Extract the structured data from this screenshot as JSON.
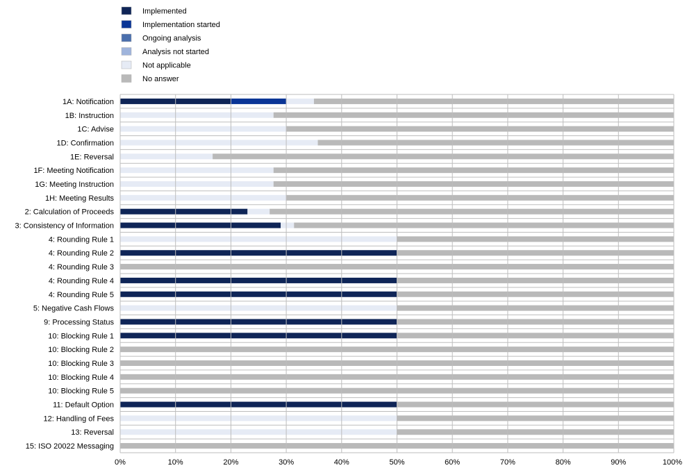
{
  "chart_data": {
    "type": "bar",
    "orientation": "horizontal",
    "stacked": true,
    "legend_position": "top-left",
    "grid": true,
    "xlim": [
      0,
      100
    ],
    "x_ticks": [
      0,
      10,
      20,
      30,
      40,
      50,
      60,
      70,
      80,
      90,
      100
    ],
    "x_tick_labels": [
      "0%",
      "10%",
      "20%",
      "30%",
      "40%",
      "50%",
      "60%",
      "70%",
      "80%",
      "90%",
      "100%"
    ],
    "categories": [
      "1A: Notification",
      "1B: Instruction",
      "1C: Advise",
      "1D: Confirmation",
      "1E:  Reversal",
      "1F: Meeting Notification",
      "1G: Meeting Instruction",
      "1H: Meeting Results",
      "2: Calculation of Proceeds",
      "3: Consistency of Information",
      "4: Rounding Rule 1",
      "4: Rounding Rule 2",
      "4: Rounding Rule 3",
      "4: Rounding Rule 4",
      "4: Rounding Rule 5",
      "5: Negative Cash Flows",
      "9: Processing Status",
      "10: Blocking Rule 1",
      "10: Blocking Rule 2",
      "10: Blocking Rule 3",
      "10: Blocking Rule 4",
      "10: Blocking Rule 5",
      "11: Default Option",
      "12: Handling of Fees",
      "13: Reversal",
      "15: ISO 20022 Messaging"
    ],
    "series": [
      {
        "name": "Implemented",
        "color": "#0f2557",
        "values": [
          20,
          0,
          0,
          0,
          0,
          0,
          0,
          0,
          23,
          29,
          0,
          50,
          0,
          50,
          50,
          0,
          50,
          50,
          0,
          0,
          0,
          0,
          50,
          0,
          0,
          0
        ]
      },
      {
        "name": "Implementation started",
        "color": "#0a3596",
        "values": [
          10,
          0,
          0,
          0,
          0,
          0,
          0,
          0,
          0,
          0,
          0,
          0,
          0,
          0,
          0,
          0,
          0,
          0,
          0,
          0,
          0,
          0,
          0,
          0,
          0,
          0
        ]
      },
      {
        "name": "Ongoing analysis",
        "color": "#4a6fad",
        "values": [
          0,
          0,
          0,
          0,
          0,
          0,
          0,
          0,
          0,
          0,
          0,
          0,
          0,
          0,
          0,
          0,
          0,
          0,
          0,
          0,
          0,
          0,
          0,
          0,
          0,
          0
        ]
      },
      {
        "name": "Analysis not started",
        "color": "#9fb4dc",
        "values": [
          0,
          0,
          0,
          0,
          0,
          0,
          0,
          0,
          0,
          0,
          0,
          0,
          0,
          0,
          0,
          0,
          0,
          0,
          0,
          0,
          0,
          0,
          0,
          0,
          0,
          0
        ]
      },
      {
        "name": "Not applicable",
        "color": "#e6ebf5",
        "values": [
          5,
          27.7,
          30,
          35.7,
          16.7,
          27.7,
          27.7,
          30,
          4,
          2.4,
          50,
          0,
          0,
          0,
          0,
          50,
          0,
          0,
          0,
          0,
          0,
          0,
          0,
          50,
          50,
          0
        ]
      },
      {
        "name": "No answer",
        "color": "#b9b9b9",
        "values": [
          65,
          72.3,
          70,
          64.3,
          83.3,
          72.3,
          72.3,
          70,
          73,
          68.6,
          50,
          50,
          100,
          50,
          50,
          50,
          50,
          50,
          100,
          100,
          100,
          100,
          50,
          50,
          50,
          100
        ]
      }
    ]
  }
}
